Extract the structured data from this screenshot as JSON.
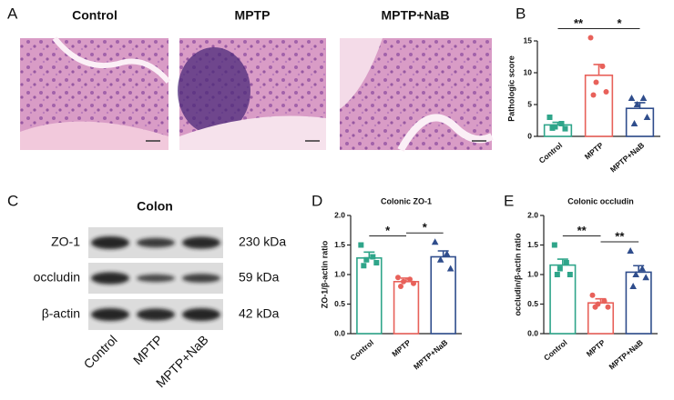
{
  "panels": {
    "A": {
      "label": "A",
      "images": [
        "Control",
        "MPTP",
        "MPTP+NaB"
      ]
    },
    "C": {
      "label": "C",
      "title": "Colon",
      "rows": [
        {
          "name": "ZO-1",
          "size": "230 kDa"
        },
        {
          "name": "occludin",
          "size": "59 kDa"
        },
        {
          "name": "β-actin",
          "size": "42 kDa"
        }
      ],
      "lanes": [
        "Control",
        "MPTP",
        "MPTP+NaB"
      ]
    }
  },
  "chart_data": [
    {
      "type": "bar",
      "panel": "B",
      "ylabel": "Pathologic score",
      "categories": [
        "Control",
        "MPTP",
        "MPTP+NaB"
      ],
      "colors": [
        "#2fa58a",
        "#e8615a",
        "#2f4d8c"
      ],
      "markers": [
        "square",
        "circle",
        "triangle"
      ],
      "values": [
        1.8,
        9.6,
        4.4
      ],
      "errors": [
        0.4,
        1.7,
        0.9
      ],
      "points": [
        [
          3,
          2,
          1.5,
          1.2,
          1.3
        ],
        [
          15.5,
          11,
          8.5,
          7,
          6.5
        ],
        [
          6,
          6,
          5,
          3,
          2
        ]
      ],
      "ylim": [
        0,
        15
      ],
      "yticks": [
        0,
        5,
        10,
        15
      ],
      "annotations": [
        {
          "between": [
            "Control",
            "MPTP"
          ],
          "label": "**"
        },
        {
          "between": [
            "MPTP",
            "MPTP+NaB"
          ],
          "label": "*"
        }
      ]
    },
    {
      "type": "bar",
      "panel": "D",
      "title": "Colonic ZO-1",
      "ylabel": "ZO-1/β-actin ratio",
      "categories": [
        "Control",
        "MPTP",
        "MPTP+NaB"
      ],
      "colors": [
        "#2fa58a",
        "#e8615a",
        "#2f4d8c"
      ],
      "markers": [
        "square",
        "circle",
        "triangle"
      ],
      "values": [
        1.28,
        0.88,
        1.3
      ],
      "errors": [
        0.1,
        0.06,
        0.1
      ],
      "points": [
        [
          1.5,
          1.3,
          1.25,
          1.2,
          1.15
        ],
        [
          0.95,
          0.92,
          0.88,
          0.85,
          0.8
        ],
        [
          1.55,
          1.35,
          1.25,
          1.1
        ]
      ],
      "ylim": [
        0,
        2
      ],
      "yticks": [
        {
          "value": 0,
          "label": "0.0"
        },
        0.5,
        {
          "value": 1,
          "label": "1.0"
        },
        1.5,
        {
          "value": 2,
          "label": "2.0"
        }
      ],
      "annotations": [
        {
          "between": [
            "Control",
            "MPTP"
          ],
          "label": "*"
        },
        {
          "between": [
            "MPTP",
            "MPTP+NaB"
          ],
          "label": "*"
        }
      ]
    },
    {
      "type": "bar",
      "panel": "E",
      "title": "Colonic occludin",
      "ylabel": "occludin/β-actin ratio",
      "categories": [
        "Control",
        "MPTP",
        "MPTP+NaB"
      ],
      "colors": [
        "#2fa58a",
        "#e8615a",
        "#2f4d8c"
      ],
      "markers": [
        "square",
        "circle",
        "triangle"
      ],
      "values": [
        1.16,
        0.52,
        1.04
      ],
      "errors": [
        0.1,
        0.07,
        0.11
      ],
      "points": [
        [
          1.5,
          1.2,
          1.1,
          1.0,
          1.0
        ],
        [
          0.65,
          0.55,
          0.5,
          0.45,
          0.45
        ],
        [
          1.4,
          1.1,
          1.0,
          0.95,
          0.8
        ]
      ],
      "ylim": [
        0,
        2
      ],
      "yticks": [
        {
          "value": 0,
          "label": "0.0"
        },
        0.5,
        {
          "value": 1,
          "label": "1.0"
        },
        1.5,
        {
          "value": 2,
          "label": "2.0"
        }
      ],
      "annotations": [
        {
          "between": [
            "Control",
            "MPTP"
          ],
          "label": "**"
        },
        {
          "between": [
            "MPTP",
            "MPTP+NaB"
          ],
          "label": "**"
        }
      ]
    }
  ]
}
